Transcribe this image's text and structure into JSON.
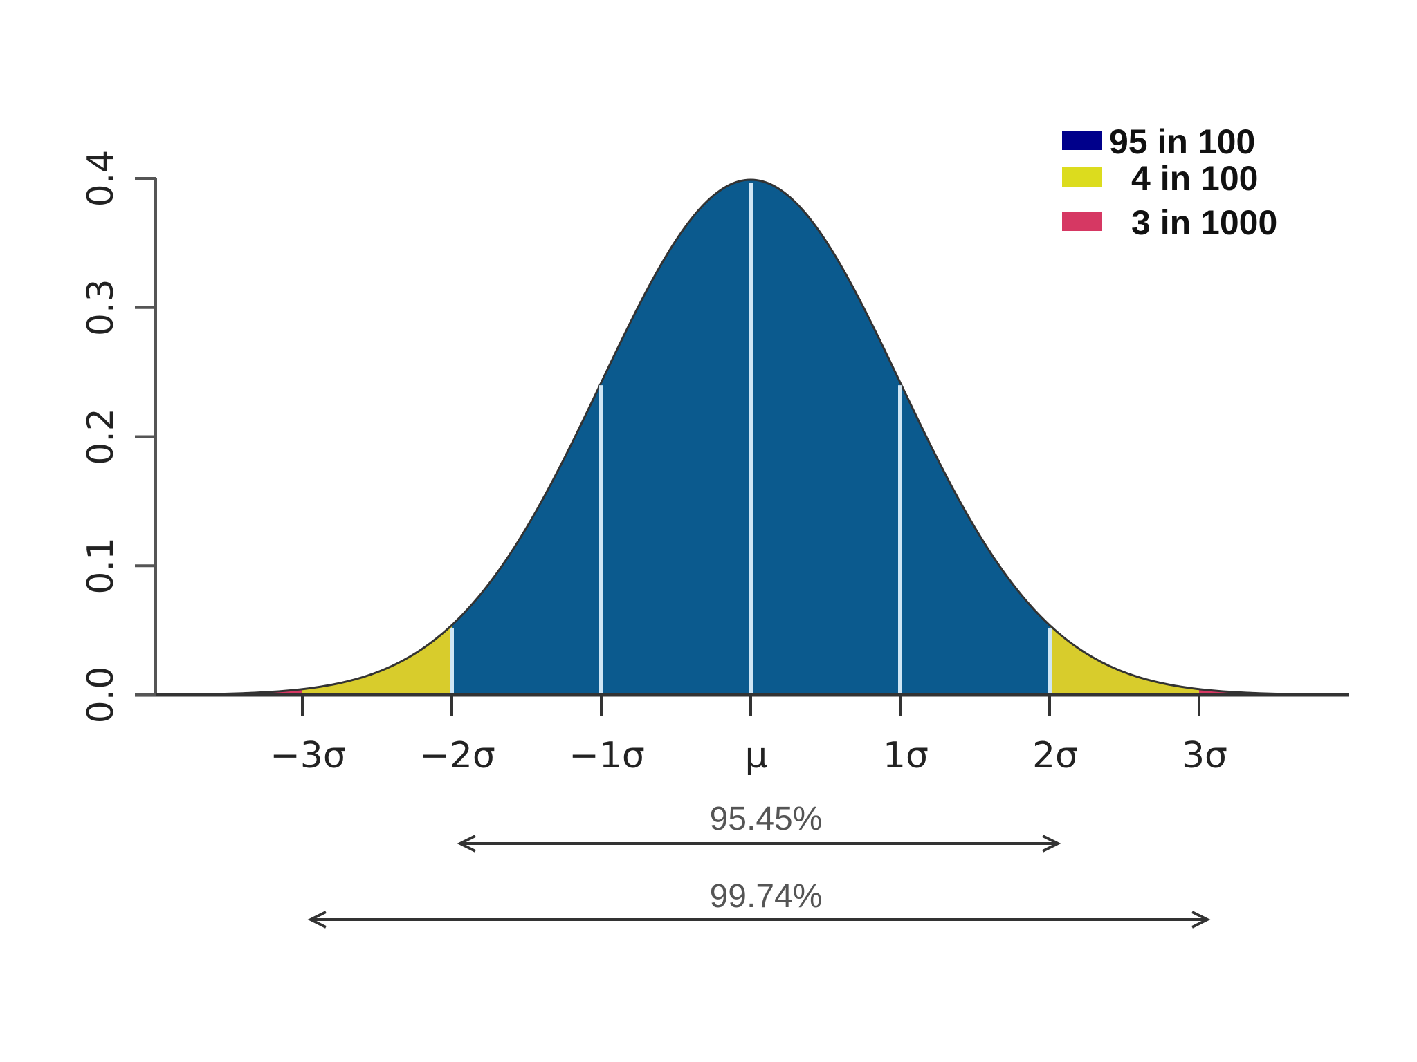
{
  "chart_data": {
    "type": "area",
    "title": "",
    "xlabel": "",
    "ylabel": "",
    "distribution": "standard normal",
    "xlim": [
      -4,
      4
    ],
    "ylim": [
      0,
      0.4
    ],
    "x_ticks": [
      {
        "value": -3,
        "label": "−3σ"
      },
      {
        "value": -2,
        "label": "−2σ"
      },
      {
        "value": -1,
        "label": "−1σ"
      },
      {
        "value": 0,
        "label": "μ"
      },
      {
        "value": 1,
        "label": "1σ"
      },
      {
        "value": 2,
        "label": "2σ"
      },
      {
        "value": 3,
        "label": "3σ"
      }
    ],
    "y_ticks": [
      {
        "value": 0.0,
        "label": "0.0"
      },
      {
        "value": 0.1,
        "label": "0.1"
      },
      {
        "value": 0.2,
        "label": "0.2"
      },
      {
        "value": 0.3,
        "label": "0.3"
      },
      {
        "value": 0.4,
        "label": "0.4"
      }
    ],
    "regions": [
      {
        "name": "95 in 100",
        "from": -2,
        "to": 2,
        "color": "#0b5a8e"
      },
      {
        "name": "4 in 100",
        "from": -3,
        "to": -2,
        "color": "#d8cc2c"
      },
      {
        "name": "4 in 100",
        "from": 2,
        "to": 3,
        "color": "#d8cc2c"
      },
      {
        "name": "3 in 1000",
        "from": -4,
        "to": -3,
        "color": "#d63863"
      },
      {
        "name": "3 in 1000",
        "from": 3,
        "to": 4,
        "color": "#d63863"
      }
    ],
    "divider_lines_at": [
      -2,
      -1,
      0,
      1,
      2
    ],
    "legend": [
      {
        "label": "95 in 100",
        "color": "#00008b"
      },
      {
        "label": "4 in 100",
        "color": "#dcdc1e"
      },
      {
        "label": "3 in 1000",
        "color": "#d63863"
      }
    ],
    "legend_position": "top-right",
    "ranges": [
      {
        "label": "95.45%",
        "from": -2,
        "to": 2
      },
      {
        "label": "99.74%",
        "from": -3,
        "to": 3
      }
    ]
  }
}
